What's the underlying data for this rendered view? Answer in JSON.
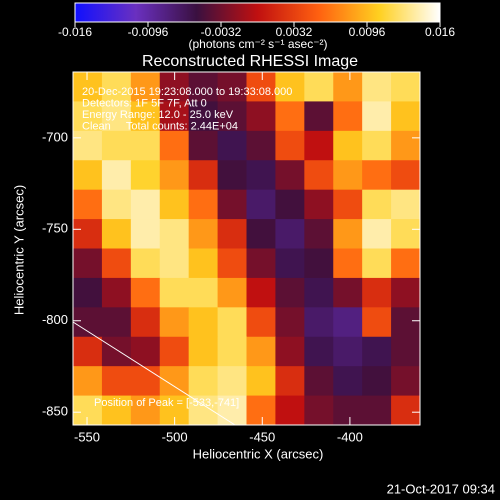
{
  "chart_data": {
    "type": "heatmap",
    "title": "Reconstructed RHESSI Image",
    "xlabel": "Heliocentric X (arcsec)",
    "ylabel": "Heliocentric Y (arcsec)",
    "colorbar_label": "(photons cm⁻² s⁻¹ asec⁻²)",
    "annotations": [
      "20-Dec-2015 19:23:08.000 to 19:33:08.000",
      "Detectors: 1F 5F 7F, Att 0",
      "Energy Range: 12.0 - 25.0 keV",
      "Clean     Total counts: 2.44E+04"
    ],
    "peak_label": "Position of Peak = [-533,-741]",
    "footer": "21-Oct-2017 09:34",
    "xlim": [
      -558,
      -360
    ],
    "xticks": [
      -550,
      -500,
      -450,
      -400
    ],
    "ylim": [
      -857,
      -664
    ],
    "yticks": [
      -850,
      -800,
      -750,
      -700
    ],
    "zlim": [
      -0.016,
      0.016
    ],
    "cticks": [
      -0.016,
      -0.0096,
      -0.0032,
      0.0032,
      0.0096,
      0.016
    ],
    "colorscale": [
      "#1010ff",
      "#6a30c0",
      "#3a1040",
      "#c01010",
      "#ff6010",
      "#ffd020",
      "#ffffff"
    ],
    "z": [
      [
        0.01,
        0.012,
        0.008,
        -0.002,
        -0.004,
        -0.003,
        0.004,
        0.01,
        0.012,
        0.008,
        0.013,
        0.012
      ],
      [
        0.012,
        0.013,
        0.01,
        -0.001,
        -0.005,
        -0.004,
        -0.002,
        0.006,
        -0.004,
        0.006,
        0.014,
        0.01
      ],
      [
        0.013,
        0.012,
        0.012,
        0.006,
        -0.004,
        -0.006,
        -0.004,
        0.004,
        0.0,
        0.01,
        0.012,
        0.008
      ],
      [
        0.01,
        0.014,
        0.011,
        0.008,
        0.002,
        -0.005,
        -0.006,
        -0.003,
        0.004,
        0.008,
        0.006,
        0.004
      ],
      [
        0.006,
        0.013,
        0.014,
        0.01,
        0.006,
        -0.003,
        -0.007,
        -0.005,
        -0.002,
        0.004,
        0.012,
        0.013
      ],
      [
        0.002,
        0.01,
        0.014,
        0.013,
        0.008,
        0.002,
        -0.005,
        -0.007,
        -0.004,
        0.008,
        0.014,
        0.012
      ],
      [
        -0.003,
        0.004,
        0.012,
        0.013,
        0.01,
        0.004,
        -0.003,
        -0.006,
        -0.005,
        0.006,
        0.012,
        0.006
      ],
      [
        -0.005,
        -0.002,
        0.006,
        0.012,
        0.012,
        0.008,
        0.0,
        -0.004,
        -0.006,
        -0.003,
        0.002,
        -0.002
      ],
      [
        -0.004,
        -0.004,
        0.002,
        0.008,
        0.01,
        0.012,
        0.004,
        -0.003,
        -0.007,
        -0.008,
        0.004,
        -0.004
      ],
      [
        0.002,
        -0.003,
        -0.002,
        0.004,
        0.01,
        0.012,
        0.008,
        -0.002,
        -0.006,
        -0.007,
        -0.006,
        -0.004
      ],
      [
        0.008,
        0.004,
        0.004,
        0.008,
        0.012,
        0.013,
        0.01,
        0.002,
        -0.004,
        -0.006,
        -0.005,
        -0.003
      ],
      [
        0.012,
        0.01,
        0.008,
        0.01,
        0.013,
        0.014,
        0.006,
        0.0,
        -0.003,
        -0.004,
        -0.004,
        0.002
      ]
    ]
  }
}
